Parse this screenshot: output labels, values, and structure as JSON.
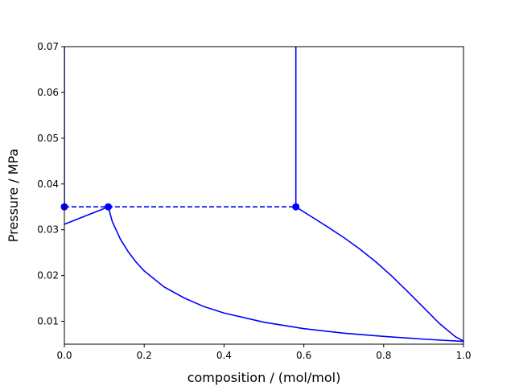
{
  "chart_data": {
    "type": "line",
    "title": "",
    "xlabel": "composition / (mol/mol)",
    "ylabel": "Pressure / MPa",
    "xlim": [
      0.0,
      1.0
    ],
    "ylim": [
      0.005,
      0.07
    ],
    "xticks": [
      "0.0",
      "0.2",
      "0.4",
      "0.6",
      "0.8",
      "1.0"
    ],
    "yticks": [
      "0.01",
      "0.02",
      "0.03",
      "0.04",
      "0.05",
      "0.06",
      "0.07"
    ],
    "grid": false,
    "legend": "none",
    "color": "#0000ff",
    "series": [
      {
        "style": "solid",
        "x": [
          0.0,
          0.0
        ],
        "y": [
          0.035,
          0.07
        ]
      },
      {
        "style": "solid",
        "x": [
          0.0,
          0.11
        ],
        "y": [
          0.0312,
          0.035
        ]
      },
      {
        "style": "solid",
        "x": [
          0.11,
          0.12,
          0.14,
          0.16,
          0.18,
          0.2,
          0.25,
          0.3,
          0.35,
          0.4,
          0.5,
          0.6,
          0.7,
          0.8,
          0.9,
          1.0
        ],
        "y": [
          0.035,
          0.0318,
          0.028,
          0.0252,
          0.0229,
          0.021,
          0.0175,
          0.0151,
          0.0132,
          0.0118,
          0.0098,
          0.0084,
          0.0074,
          0.0067,
          0.0061,
          0.0056
        ]
      },
      {
        "style": "solid",
        "x": [
          0.58,
          0.58
        ],
        "y": [
          0.035,
          0.07
        ]
      },
      {
        "style": "solid",
        "x": [
          0.58,
          0.62,
          0.66,
          0.7,
          0.74,
          0.78,
          0.82,
          0.86,
          0.9,
          0.94,
          0.98,
          1.0
        ],
        "y": [
          0.035,
          0.0328,
          0.0306,
          0.0283,
          0.0258,
          0.023,
          0.0199,
          0.0165,
          0.013,
          0.0095,
          0.0066,
          0.0057
        ]
      },
      {
        "style": "dashed",
        "x": [
          0.0,
          0.58
        ],
        "y": [
          0.035,
          0.035
        ]
      }
    ],
    "points": [
      {
        "x": 0.0,
        "y": 0.035
      },
      {
        "x": 0.11,
        "y": 0.035
      },
      {
        "x": 0.58,
        "y": 0.035
      }
    ]
  }
}
